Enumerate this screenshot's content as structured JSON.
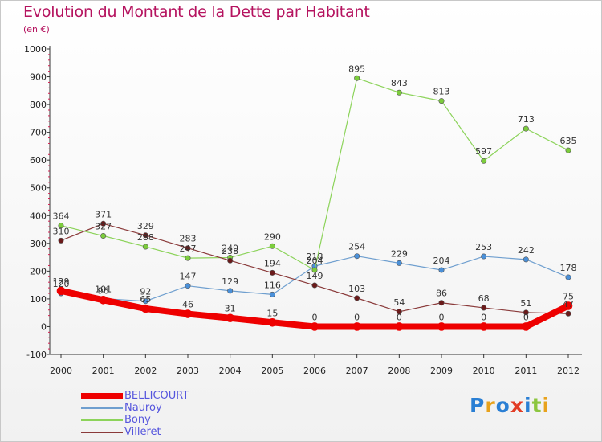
{
  "header": {
    "title": "Evolution du Montant de la Dette par Habitant",
    "subtitle": "(en €)"
  },
  "logo": {
    "text": "Proxiti",
    "letters": [
      "P",
      "r",
      "o",
      "x",
      "i",
      "t",
      "i"
    ],
    "colors": [
      "#2a7fd4",
      "#e8a21c",
      "#2a7fd4",
      "#e23c25",
      "#2a7fd4",
      "#8cc63f",
      "#e8a21c"
    ]
  },
  "chart_data": {
    "type": "line",
    "title": "Evolution du Montant de la Dette par Habitant",
    "subtitle": "(en €)",
    "xlabel": "",
    "ylabel": "",
    "x": [
      "2000",
      "2001",
      "2002",
      "2003",
      "2004",
      "2005",
      "2006",
      "2007",
      "2008",
      "2009",
      "2010",
      "2011",
      "2012"
    ],
    "ylim": [
      -100,
      1000
    ],
    "yticks": [
      "-100",
      "0",
      "100",
      "200",
      "300",
      "400",
      "500",
      "600",
      "700",
      "800",
      "900",
      "1000"
    ],
    "grid": false,
    "legend_position": "bottom-left",
    "series": [
      {
        "name": "BELLICOURT",
        "color": "#ee0000",
        "width": 8,
        "marker_color": "#ee0000",
        "values": [
          129,
          96,
          65,
          46,
          31,
          15,
          0,
          0,
          0,
          0,
          0,
          0,
          75
        ],
        "labels": [
          "129",
          "96",
          "65",
          "46",
          "31",
          "15",
          "0",
          "0",
          "0",
          "0",
          "0",
          "0",
          "75"
        ]
      },
      {
        "name": "Nauroy",
        "color": "#6f9fcf",
        "width": 1.2,
        "marker_color": "#4a90d9",
        "values": [
          120,
          101,
          92,
          147,
          129,
          116,
          218,
          254,
          229,
          204,
          253,
          242,
          178
        ],
        "labels": [
          "120",
          "101",
          "92",
          "147",
          "129",
          "116",
          "218",
          "254",
          "229",
          "204",
          "253",
          "242",
          "178"
        ]
      },
      {
        "name": "Bony",
        "color": "#8cd35a",
        "width": 1.2,
        "marker_color": "#7ccd3c",
        "values": [
          364,
          327,
          288,
          247,
          249,
          290,
          204,
          895,
          843,
          813,
          597,
          713,
          635
        ],
        "labels": [
          "364",
          "327",
          "288",
          "247",
          "249",
          "290",
          "204",
          "895",
          "843",
          "813",
          "597",
          "713",
          "635"
        ]
      },
      {
        "name": "Villeret",
        "color": "#8a3a3a",
        "width": 1.2,
        "marker_color": "#6b1a1a",
        "values": [
          310,
          371,
          329,
          283,
          238,
          194,
          149,
          103,
          54,
          86,
          68,
          51,
          47
        ],
        "labels": [
          "310",
          "371",
          "329",
          "283",
          "238",
          "194",
          "149",
          "103",
          "54",
          "86",
          "68",
          "51",
          "47"
        ]
      }
    ]
  }
}
